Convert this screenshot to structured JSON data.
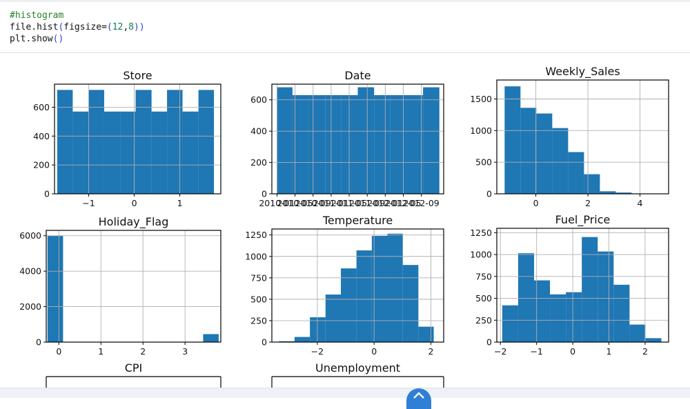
{
  "code": {
    "comment": "#histogram",
    "line2_prefix": "file.hist",
    "line2_open": "(",
    "line2_arg": "figsize=",
    "line2_open2": "(",
    "line2_num1": "12",
    "line2_comma": ",",
    "line2_num2": "8",
    "line2_close": "))",
    "line3_prefix": "plt.show",
    "line3_parens": "()"
  },
  "colors": {
    "bar": "#1f77b4",
    "grid": "#b0b0b0"
  },
  "icons": {
    "scroll": "chevron-up-icon"
  },
  "chart_data": [
    {
      "type": "bar",
      "title": "Store",
      "xlim": [
        -1.75,
        1.9
      ],
      "ylim": [
        0,
        760
      ],
      "xticks": [
        {
          "v": -1,
          "l": "−1"
        },
        {
          "v": 0,
          "l": "0"
        },
        {
          "v": 1,
          "l": "1"
        }
      ],
      "yticks": [
        {
          "v": 0,
          "l": "0"
        },
        {
          "v": 200,
          "l": "200"
        },
        {
          "v": 400,
          "l": "400"
        },
        {
          "v": 600,
          "l": "600"
        }
      ],
      "bin_edges": [
        -1.69,
        -1.35,
        -1.0,
        -0.66,
        -0.31,
        0.03,
        0.38,
        0.72,
        1.06,
        1.41,
        1.75
      ],
      "counts": [
        720,
        570,
        720,
        570,
        570,
        720,
        570,
        720,
        570,
        720
      ]
    },
    {
      "type": "bar",
      "title": "Date",
      "xlim": [
        0,
        1.0
      ],
      "ylim": [
        0,
        700
      ],
      "xticks": [
        {
          "v": 0.03,
          "l": "2010-01"
        },
        {
          "v": 0.135,
          "l": "2010-05"
        },
        {
          "v": 0.24,
          "l": "2010-09"
        },
        {
          "v": 0.345,
          "l": "2011-01"
        },
        {
          "v": 0.45,
          "l": "2011-05"
        },
        {
          "v": 0.555,
          "l": "2011-09"
        },
        {
          "v": 0.66,
          "l": "2012-01"
        },
        {
          "v": 0.765,
          "l": "2012-05"
        },
        {
          "v": 0.87,
          "l": "2012-09"
        }
      ],
      "yticks": [
        {
          "v": 0,
          "l": "0"
        },
        {
          "v": 200,
          "l": "200"
        },
        {
          "v": 400,
          "l": "400"
        },
        {
          "v": 600,
          "l": "600"
        }
      ],
      "bin_edges": [
        0.03,
        0.12,
        0.215,
        0.31,
        0.405,
        0.5,
        0.595,
        0.69,
        0.785,
        0.88,
        0.975
      ],
      "counts": [
        680,
        630,
        630,
        630,
        630,
        680,
        630,
        630,
        630,
        680
      ]
    },
    {
      "type": "bar",
      "title": "Weekly_Sales",
      "xlim": [
        -1.5,
        5.1
      ],
      "ylim": [
        0,
        1800
      ],
      "xticks": [
        {
          "v": 0,
          "l": "0"
        },
        {
          "v": 2,
          "l": "2"
        },
        {
          "v": 4,
          "l": "4"
        }
      ],
      "yticks": [
        {
          "v": 0,
          "l": "0"
        },
        {
          "v": 500,
          "l": "500"
        },
        {
          "v": 1000,
          "l": "1000"
        },
        {
          "v": 1500,
          "l": "1500"
        }
      ],
      "bin_edges": [
        -1.2,
        -0.59,
        0.02,
        0.63,
        1.24,
        1.85,
        2.46,
        3.07,
        3.68,
        4.29,
        4.9
      ],
      "counts": [
        1700,
        1360,
        1270,
        1040,
        660,
        310,
        40,
        20,
        3,
        2
      ]
    },
    {
      "type": "bar",
      "title": "Holiday_Flag",
      "xlim": [
        -0.3,
        3.85
      ],
      "ylim": [
        0,
        6300
      ],
      "xticks": [
        {
          "v": 0,
          "l": "0"
        },
        {
          "v": 1,
          "l": "1"
        },
        {
          "v": 2,
          "l": "2"
        },
        {
          "v": 3,
          "l": "3"
        }
      ],
      "yticks": [
        {
          "v": 0,
          "l": "0"
        },
        {
          "v": 2000,
          "l": "2000"
        },
        {
          "v": 4000,
          "l": "4000"
        },
        {
          "v": 6000,
          "l": "6000"
        }
      ],
      "bin_edges": [
        -0.27,
        0.1,
        0.47,
        0.84,
        1.21,
        1.58,
        1.95,
        2.32,
        2.69,
        3.06,
        3.43,
        3.8
      ],
      "counts": [
        5985,
        0,
        0,
        0,
        0,
        0,
        0,
        0,
        0,
        0,
        450
      ]
    },
    {
      "type": "bar",
      "title": "Temperature",
      "xlim": [
        -3.6,
        2.45
      ],
      "ylim": [
        0,
        1320
      ],
      "xticks": [
        {
          "v": -2,
          "l": "−2"
        },
        {
          "v": 0,
          "l": "0"
        },
        {
          "v": 2,
          "l": "2"
        }
      ],
      "yticks": [
        {
          "v": 0,
          "l": "0"
        },
        {
          "v": 250,
          "l": "250"
        },
        {
          "v": 500,
          "l": "500"
        },
        {
          "v": 750,
          "l": "750"
        },
        {
          "v": 1000,
          "l": "1000"
        },
        {
          "v": 1250,
          "l": "1250"
        }
      ],
      "bin_edges": [
        -3.35,
        -2.8,
        -2.26,
        -1.71,
        -1.17,
        -0.62,
        -0.08,
        0.47,
        1.01,
        1.56,
        2.1
      ],
      "counts": [
        10,
        60,
        290,
        555,
        860,
        1070,
        1240,
        1265,
        900,
        180
      ]
    },
    {
      "type": "bar",
      "title": "Fuel_Price",
      "xlim": [
        -2.1,
        2.65
      ],
      "ylim": [
        0,
        1300
      ],
      "xticks": [
        {
          "v": -2,
          "l": "−2"
        },
        {
          "v": -1,
          "l": "−1"
        },
        {
          "v": 0,
          "l": "0"
        },
        {
          "v": 1,
          "l": "1"
        },
        {
          "v": 2,
          "l": "2"
        }
      ],
      "yticks": [
        {
          "v": 0,
          "l": "0"
        },
        {
          "v": 250,
          "l": "250"
        },
        {
          "v": 500,
          "l": "500"
        },
        {
          "v": 750,
          "l": "750"
        },
        {
          "v": 1000,
          "l": "1000"
        },
        {
          "v": 1250,
          "l": "1250"
        }
      ],
      "bin_edges": [
        -1.95,
        -1.51,
        -1.07,
        -0.63,
        -0.19,
        0.25,
        0.69,
        1.13,
        1.57,
        2.01,
        2.45
      ],
      "counts": [
        420,
        1015,
        705,
        545,
        570,
        1200,
        1035,
        655,
        200,
        45
      ]
    },
    {
      "type": "bar",
      "title": "CPI"
    },
    {
      "type": "bar",
      "title": "Unemployment"
    }
  ]
}
